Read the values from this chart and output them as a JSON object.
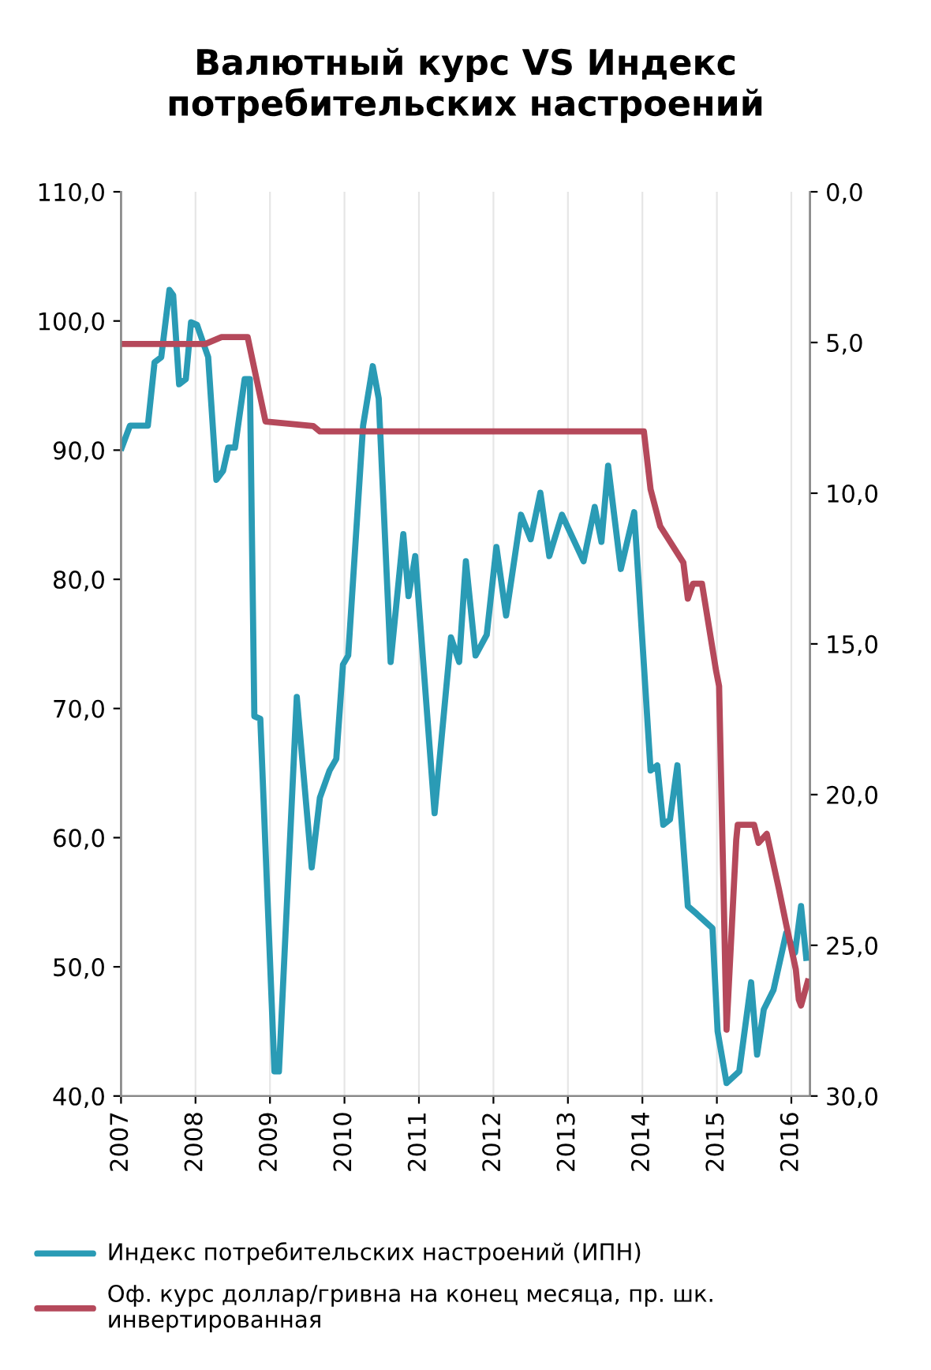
{
  "chart_data": {
    "type": "line",
    "title": "Валютный курс VS Индекс\nпотребительских настроений",
    "series": [
      {
        "name": "Индекс потребительских настроений (ИПН)",
        "color": "#2a9bb5",
        "x": [
          2007.01,
          2007.12,
          2007.36,
          2007.45,
          2007.54,
          2007.65,
          2007.7,
          2007.78,
          2007.87,
          2007.94,
          2008.02,
          2008.17,
          2008.28,
          2008.37,
          2008.44,
          2008.53,
          2008.66,
          2008.73,
          2008.79,
          2008.87,
          2009.06,
          2009.12,
          2009.36,
          2009.56,
          2009.67,
          2009.8,
          2009.89,
          2009.98,
          2010.05,
          2010.25,
          2010.38,
          2010.46,
          2010.62,
          2010.79,
          2010.86,
          2010.95,
          2011.21,
          2011.43,
          2011.54,
          2011.63,
          2011.76,
          2011.91,
          2012.04,
          2012.17,
          2012.37,
          2012.5,
          2012.63,
          2012.75,
          2012.92,
          2013.21,
          2013.36,
          2013.45,
          2013.54,
          2013.71,
          2013.89,
          2014.11,
          2014.2,
          2014.28,
          2014.37,
          2014.47,
          2014.61,
          2014.73,
          2014.94,
          2015.01,
          2015.13,
          2015.3,
          2015.46,
          2015.54,
          2015.63,
          2015.76,
          2015.93,
          2016.05,
          2016.13,
          2016.2
        ],
        "values": [
          90.2,
          91.9,
          91.9,
          96.8,
          97.2,
          102.4,
          102.0,
          95.1,
          95.5,
          99.9,
          99.7,
          97.2,
          87.7,
          88.4,
          90.2,
          90.2,
          95.5,
          95.5,
          69.4,
          69.2,
          41.9,
          41.9,
          70.9,
          57.7,
          63.1,
          65.2,
          66.1,
          73.4,
          74.1,
          91.9,
          96.5,
          94.0,
          73.6,
          83.5,
          78.7,
          81.8,
          61.9,
          75.5,
          73.6,
          81.4,
          74.1,
          75.7,
          82.5,
          77.2,
          85.0,
          83.1,
          86.7,
          81.8,
          85.0,
          81.4,
          85.6,
          82.9,
          88.8,
          80.8,
          85.2,
          65.2,
          65.6,
          61.0,
          61.4,
          65.6,
          54.7,
          54.1,
          53.0,
          45.0,
          41.0,
          41.9,
          48.8,
          43.2,
          46.7,
          48.2,
          52.6,
          51.1,
          54.7,
          50.7
        ]
      },
      {
        "name": "Оф. курс доллар/гривна на конец месяца, пр. шк. инвертированная",
        "color": "#b5495b",
        "axis": "y2",
        "x": [
          2007.0,
          2008.13,
          2008.35,
          2008.7,
          2008.94,
          2009.58,
          2009.67,
          2014.02,
          2014.11,
          2014.24,
          2014.37,
          2014.55,
          2014.61,
          2014.68,
          2014.8,
          2014.99,
          2015.03,
          2015.13,
          2015.26,
          2015.28,
          2015.5,
          2015.56,
          2015.67,
          2015.83,
          2015.93,
          2016.06,
          2016.1,
          2016.13,
          2016.22
        ],
        "values": [
          5.05,
          5.05,
          4.82,
          4.82,
          7.62,
          7.77,
          7.95,
          7.95,
          9.87,
          11.1,
          11.6,
          12.3,
          13.5,
          13.0,
          13.0,
          15.9,
          16.4,
          27.8,
          21.5,
          21.0,
          21.0,
          21.6,
          21.3,
          23.1,
          24.3,
          25.8,
          26.8,
          27.0,
          26.2
        ]
      }
    ],
    "xlim": [
      2007,
      2016.25
    ],
    "xticks": [
      2007,
      2008,
      2009,
      2010,
      2011,
      2012,
      2013,
      2014,
      2015,
      2016
    ],
    "ylim": [
      40,
      110
    ],
    "yticks": [
      {
        "value": 40,
        "label": "40,0"
      },
      {
        "value": 50,
        "label": "50,0"
      },
      {
        "value": 60,
        "label": "60,0"
      },
      {
        "value": 70,
        "label": "70,0"
      },
      {
        "value": 80,
        "label": "80,0"
      },
      {
        "value": 90,
        "label": "90,0"
      },
      {
        "value": 100,
        "label": "100,0"
      },
      {
        "value": 110,
        "label": "110,0"
      }
    ],
    "y2lim": [
      30,
      0
    ],
    "y2ticks": [
      {
        "value": 30,
        "label": "30,0"
      },
      {
        "value": 25,
        "label": "25,0"
      },
      {
        "value": 20,
        "label": "20,0"
      },
      {
        "value": 15,
        "label": "15,0"
      },
      {
        "value": 10,
        "label": "10,0"
      },
      {
        "value": 5,
        "label": "5,0"
      },
      {
        "value": 0,
        "label": "0,0"
      }
    ],
    "grid": "x",
    "legend": "bottom",
    "marker": "none",
    "line_style": "solid"
  }
}
